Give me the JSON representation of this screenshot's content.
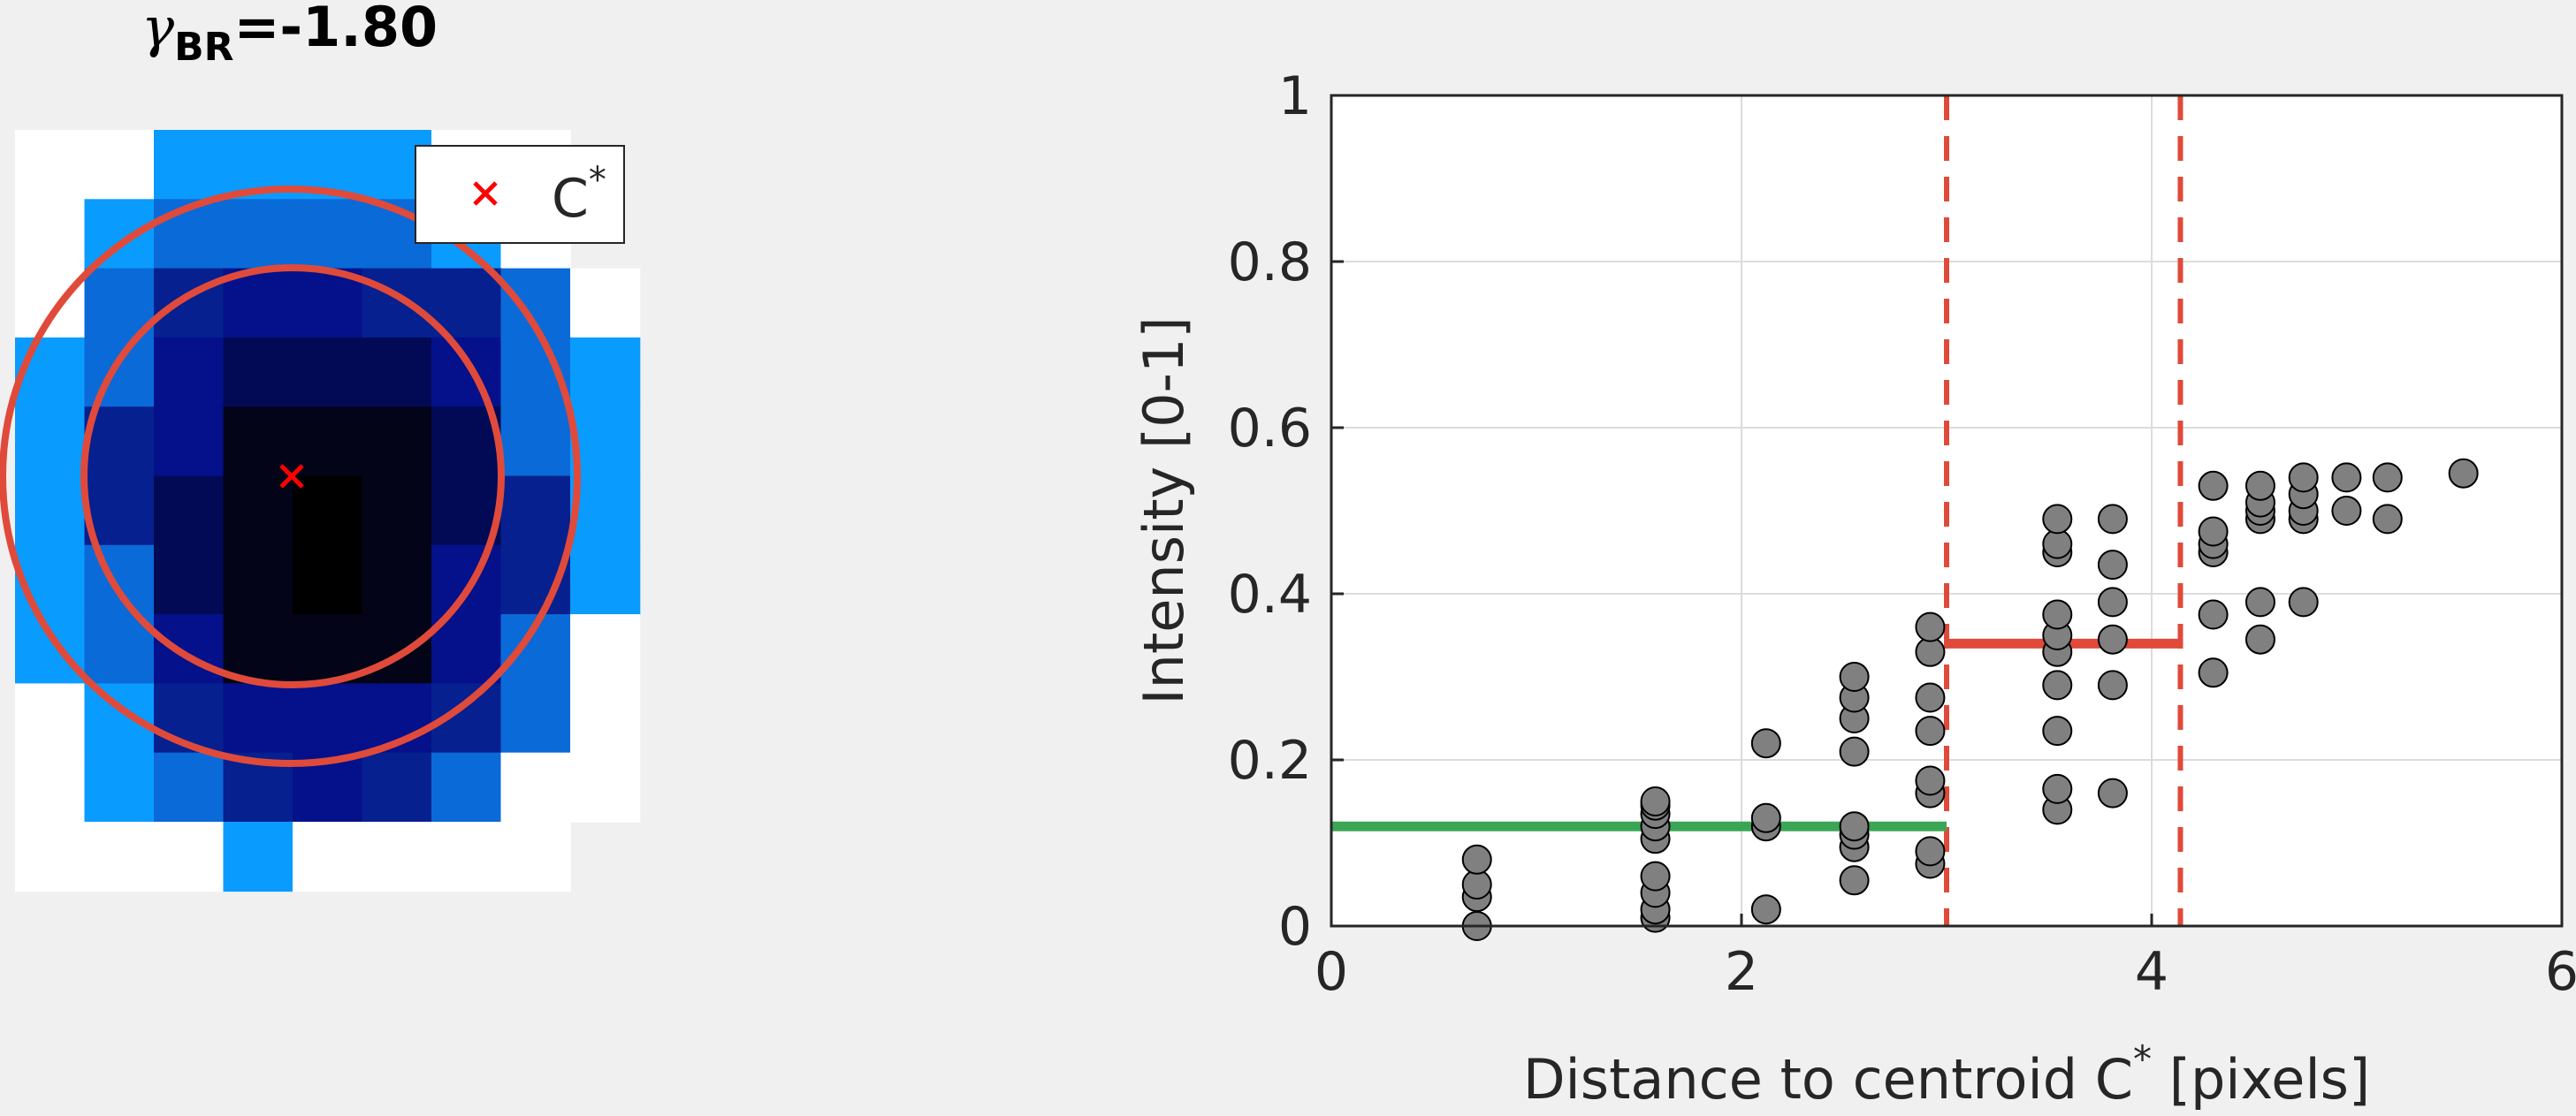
{
  "left_panel": {
    "title_symbol": "γ",
    "title_subscript": "BR",
    "title_value": "=-1.80",
    "legend_label": "C",
    "legend_label_sup": "*",
    "colors": {
      "ring": "#e04a3a",
      "marker": "#ff0000",
      "light_blue": "#0a9bff",
      "mid_blue": "#0a6ad8",
      "dark_blue": "#04118a",
      "near_black": "#030417"
    }
  },
  "chart_data": {
    "type": "scatter",
    "xlabel": "Distance to centroid C",
    "xlabel_sup": "*",
    "xlabel_suffix": " [pixels]",
    "ylabel": "Intensity [0-1]",
    "xlim": [
      0,
      6
    ],
    "ylim": [
      0,
      1
    ],
    "xticks": [
      "0",
      "2",
      "4",
      "6"
    ],
    "yticks": [
      "0",
      "0.2",
      "0.4",
      "0.6",
      "0.8",
      "1"
    ],
    "grid": true,
    "points": [
      [
        0.71,
        0.0
      ],
      [
        0.71,
        0.035
      ],
      [
        0.71,
        0.05
      ],
      [
        0.71,
        0.08
      ],
      [
        1.58,
        0.01
      ],
      [
        1.58,
        0.02
      ],
      [
        1.58,
        0.04
      ],
      [
        1.58,
        0.06
      ],
      [
        1.58,
        0.105
      ],
      [
        1.58,
        0.12
      ],
      [
        1.58,
        0.135
      ],
      [
        1.58,
        0.145
      ],
      [
        1.58,
        0.15
      ],
      [
        2.12,
        0.02
      ],
      [
        2.12,
        0.12
      ],
      [
        2.12,
        0.13
      ],
      [
        2.12,
        0.22
      ],
      [
        2.55,
        0.055
      ],
      [
        2.55,
        0.095
      ],
      [
        2.55,
        0.11
      ],
      [
        2.55,
        0.12
      ],
      [
        2.55,
        0.21
      ],
      [
        2.55,
        0.25
      ],
      [
        2.55,
        0.275
      ],
      [
        2.55,
        0.3
      ],
      [
        2.92,
        0.075
      ],
      [
        2.92,
        0.09
      ],
      [
        2.92,
        0.16
      ],
      [
        2.92,
        0.175
      ],
      [
        2.92,
        0.235
      ],
      [
        2.92,
        0.275
      ],
      [
        2.92,
        0.33
      ],
      [
        2.92,
        0.36
      ],
      [
        3.54,
        0.14
      ],
      [
        3.54,
        0.165
      ],
      [
        3.54,
        0.235
      ],
      [
        3.54,
        0.29
      ],
      [
        3.54,
        0.33
      ],
      [
        3.54,
        0.35
      ],
      [
        3.54,
        0.375
      ],
      [
        3.54,
        0.45
      ],
      [
        3.54,
        0.46
      ],
      [
        3.54,
        0.49
      ],
      [
        3.81,
        0.16
      ],
      [
        3.81,
        0.29
      ],
      [
        3.81,
        0.345
      ],
      [
        3.81,
        0.39
      ],
      [
        3.81,
        0.435
      ],
      [
        3.81,
        0.49
      ],
      [
        4.3,
        0.305
      ],
      [
        4.3,
        0.375
      ],
      [
        4.3,
        0.45
      ],
      [
        4.3,
        0.46
      ],
      [
        4.3,
        0.475
      ],
      [
        4.3,
        0.53
      ],
      [
        4.53,
        0.345
      ],
      [
        4.53,
        0.39
      ],
      [
        4.53,
        0.49
      ],
      [
        4.53,
        0.5
      ],
      [
        4.53,
        0.51
      ],
      [
        4.53,
        0.53
      ],
      [
        4.74,
        0.39
      ],
      [
        4.74,
        0.49
      ],
      [
        4.74,
        0.5
      ],
      [
        4.74,
        0.52
      ],
      [
        4.74,
        0.54
      ],
      [
        4.95,
        0.5
      ],
      [
        4.95,
        0.54
      ],
      [
        5.15,
        0.49
      ],
      [
        5.15,
        0.54
      ],
      [
        5.52,
        0.545
      ]
    ],
    "boundaries_x": [
      3.0,
      4.14
    ],
    "inner_mean": {
      "x": [
        0,
        3.0
      ],
      "y": 0.12,
      "color": "#3aa655"
    },
    "ring_mean": {
      "x": [
        3.0,
        4.14
      ],
      "y": 0.34,
      "color": "#e04a3a"
    },
    "marker_color": "#808080"
  }
}
